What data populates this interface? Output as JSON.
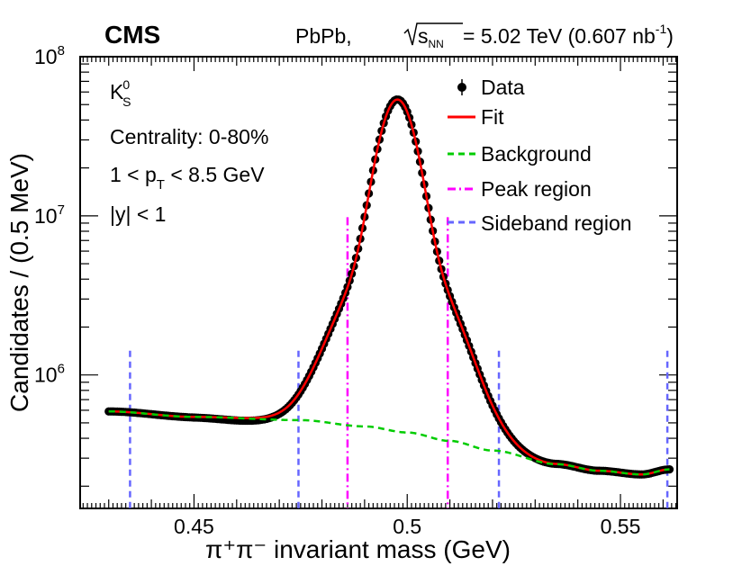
{
  "chart_data": {
    "type": "scatter",
    "experiment": "CMS",
    "collision": "PbPb, ",
    "energy_label_pre": "s",
    "energy_label_sub": "NN",
    "energy_label_post": " = 5.02 TeV (0.607 nb",
    "energy_label_sup": "-1",
    "energy_label_close": ")",
    "xlabel_main": "π⁺π⁻ invariant mass (GeV)",
    "ylabel": "Candidates / (0.5 MeV)",
    "x_ticks": [
      {
        "value": 0.45,
        "label": "0.45"
      },
      {
        "value": 0.5,
        "label": "0.5"
      },
      {
        "value": 0.55,
        "label": "0.55"
      }
    ],
    "y_ticks": [
      {
        "value": 1000000,
        "base": "10",
        "exp": "6"
      },
      {
        "value": 10000000,
        "base": "10",
        "exp": "7"
      },
      {
        "value": 100000000,
        "base": "10",
        "exp": "8"
      }
    ],
    "xlim": [
      0.4233,
      0.5633
    ],
    "ylim_log": [
      145000.0,
      100000000.0
    ],
    "y_scale": "log",
    "annotations": {
      "particle": "K",
      "particle_sub": "S",
      "particle_sup": "0",
      "centrality": "Centrality: 0-80%",
      "pt_pre": "1 < p",
      "pt_sub": "T",
      "pt_post": " < 8.5 GeV",
      "rapidity": "|y| < 1"
    },
    "legend": [
      {
        "name": "Data",
        "style": "marker",
        "color": "#000000"
      },
      {
        "name": "Fit",
        "style": "solid",
        "color": "#ff0000"
      },
      {
        "name": "Background",
        "style": "dashed",
        "color": "#00cc00"
      },
      {
        "name": "Peak region",
        "style": "dashdot",
        "color": "#ff00ff"
      },
      {
        "name": "Sideband region",
        "style": "dashed",
        "color": "#6666ff"
      }
    ],
    "peak_region": [
      0.486,
      0.5095
    ],
    "sideband_region_lines": [
      0.435,
      0.4745,
      0.5215,
      0.561
    ],
    "range": [
      0.43,
      0.5615
    ],
    "background_anchor_points": [
      {
        "x": 0.43,
        "y": 590000
      },
      {
        "x": 0.45,
        "y": 545000
      },
      {
        "x": 0.475,
        "y": 520000
      },
      {
        "x": 0.49,
        "y": 475000
      },
      {
        "x": 0.5,
        "y": 435000
      },
      {
        "x": 0.51,
        "y": 385000
      },
      {
        "x": 0.52,
        "y": 335000
      },
      {
        "x": 0.535,
        "y": 275000
      },
      {
        "x": 0.545,
        "y": 250000
      },
      {
        "x": 0.555,
        "y": 237000
      },
      {
        "x": 0.5615,
        "y": 255000
      }
    ],
    "peak_model": {
      "mean": 0.4977,
      "amplitude": 55000000,
      "sigma1": 0.0036,
      "w1": 0.85,
      "sigma2": 0.009,
      "w2": 0.12,
      "tail_amp": 120000,
      "tail_sigma": 0.006
    }
  }
}
